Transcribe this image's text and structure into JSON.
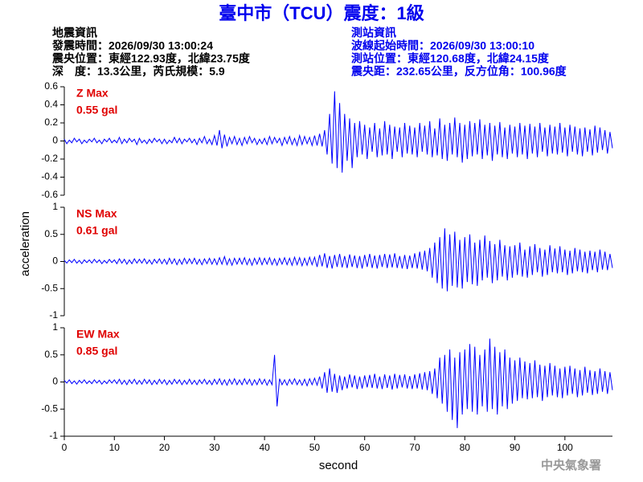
{
  "title": "臺中市（TCU）震度：1級",
  "header": {
    "left": [
      "地震資訊",
      "發震時間：2026/09/30 13:00:24",
      "震央位置：東經122.93度，北緯23.75度",
      "深　度：13.3公里，芮氏規模：5.9"
    ],
    "right": [
      "測站資訊",
      "波線起始時間：2026/09/30 13:00:10",
      "測站位置：東經120.68度，北緯24.15度",
      "震央距：232.65公里，反方位角：100.96度"
    ]
  },
  "footer": "中央氣象署",
  "chart_data": [
    {
      "type": "line",
      "label": "Z Max",
      "max_label": "0.55 gal",
      "color": "#0000ff",
      "xlim": [
        0,
        109.5
      ],
      "ylim": [
        -0.6,
        0.6
      ],
      "yticks": [
        0.6,
        0.4,
        0.2,
        0,
        -0.2,
        -0.4,
        -0.6
      ],
      "x": [
        0,
        0.5,
        1,
        1.5,
        2,
        2.5,
        3,
        3.5,
        4,
        4.5,
        5,
        5.5,
        6,
        6.5,
        7,
        7.5,
        8,
        8.5,
        9,
        9.5,
        10,
        10.5,
        11,
        11.5,
        12,
        12.5,
        13,
        13.5,
        14,
        14.5,
        15,
        15.5,
        16,
        16.5,
        17,
        17.5,
        18,
        18.5,
        19,
        19.5,
        20,
        20.5,
        21,
        21.5,
        22,
        22.5,
        23,
        23.5,
        24,
        24.5,
        25,
        25.5,
        26,
        26.5,
        27,
        27.5,
        28,
        28.5,
        29,
        29.5,
        30,
        30.5,
        31,
        31.5,
        32,
        32.5,
        33,
        33.5,
        34,
        34.5,
        35,
        35.5,
        36,
        36.5,
        37,
        37.5,
        38,
        38.5,
        39,
        39.5,
        40,
        40.5,
        41,
        41.5,
        42,
        42.5,
        43,
        43.5,
        44,
        44.5,
        45,
        45.5,
        46,
        46.5,
        47,
        47.5,
        48,
        48.5,
        49,
        49.5,
        50,
        50.5,
        51,
        51.5,
        52,
        52.5,
        53,
        53.5,
        54,
        54.5,
        55,
        55.5,
        56,
        56.5,
        57,
        57.5,
        58,
        58.5,
        59,
        59.5,
        60,
        60.5,
        61,
        61.5,
        62,
        62.5,
        63,
        63.5,
        64,
        64.5,
        65,
        65.5,
        66,
        66.5,
        67,
        67.5,
        68,
        68.5,
        69,
        69.5,
        70,
        70.5,
        71,
        71.5,
        72,
        72.5,
        73,
        73.5,
        74,
        74.5,
        75,
        75.5,
        76,
        76.5,
        77,
        77.5,
        78,
        78.5,
        79,
        79.5,
        80,
        80.5,
        81,
        81.5,
        82,
        82.5,
        83,
        83.5,
        84,
        84.5,
        85,
        85.5,
        86,
        86.5,
        87,
        87.5,
        88,
        88.5,
        89,
        89.5,
        90,
        90.5,
        91,
        91.5,
        92,
        92.5,
        93,
        93.5,
        94,
        94.5,
        95,
        95.5,
        96,
        96.5,
        97,
        97.5,
        98,
        98.5,
        99,
        99.5,
        100,
        100.5,
        101,
        101.5,
        102,
        102.5,
        103,
        103.5,
        104,
        104.5,
        105,
        105.5,
        106,
        106.5,
        107,
        107.5,
        108,
        108.5,
        109,
        109.5
      ],
      "values": [
        0.02,
        -0.03,
        0.01,
        -0.02,
        0.03,
        -0.01,
        0.02,
        -0.03,
        0.01,
        -0.02,
        0.02,
        -0.01,
        0.03,
        -0.02,
        0.01,
        -0.03,
        0.02,
        -0.01,
        0.03,
        -0.02,
        0.01,
        -0.02,
        0.04,
        -0.03,
        0.02,
        -0.02,
        0.03,
        -0.01,
        0.02,
        -0.04,
        0.03,
        -0.02,
        0.01,
        -0.03,
        0.02,
        -0.02,
        0.03,
        -0.01,
        0.02,
        -0.03,
        0.02,
        -0.03,
        0.01,
        -0.02,
        0.04,
        -0.02,
        0.03,
        -0.03,
        0.02,
        -0.01,
        0.03,
        -0.02,
        0.02,
        -0.04,
        0.03,
        -0.02,
        0.05,
        -0.03,
        0.02,
        -0.04,
        0.06,
        -0.05,
        0.12,
        -0.08,
        0.07,
        -0.06,
        0.04,
        -0.03,
        0.05,
        -0.04,
        0.03,
        -0.05,
        0.04,
        -0.03,
        0.05,
        -0.02,
        0.03,
        -0.04,
        0.02,
        -0.03,
        0.03,
        -0.04,
        0.05,
        -0.03,
        0.04,
        -0.02,
        0.03,
        -0.05,
        0.04,
        -0.03,
        0.05,
        -0.04,
        0.03,
        -0.05,
        0.06,
        -0.04,
        0.05,
        -0.03,
        0.04,
        -0.05,
        0.06,
        -0.05,
        0.08,
        -0.06,
        0.12,
        -0.15,
        0.3,
        -0.25,
        0.55,
        -0.3,
        0.42,
        -0.35,
        0.3,
        -0.22,
        0.25,
        -0.3,
        0.2,
        -0.18,
        0.22,
        -0.15,
        0.18,
        -0.2,
        0.15,
        -0.12,
        0.2,
        -0.18,
        0.14,
        -0.16,
        0.22,
        -0.15,
        0.18,
        -0.2,
        0.16,
        -0.12,
        0.15,
        -0.18,
        0.2,
        -0.14,
        0.17,
        -0.15,
        0.15,
        -0.18,
        0.2,
        -0.12,
        0.17,
        -0.15,
        0.22,
        -0.18,
        0.14,
        -0.16,
        0.25,
        -0.2,
        0.18,
        -0.22,
        0.2,
        -0.15,
        0.26,
        -0.18,
        0.2,
        -0.24,
        0.18,
        -0.2,
        0.22,
        -0.17,
        0.2,
        -0.15,
        0.24,
        -0.2,
        0.18,
        -0.16,
        0.2,
        -0.22,
        0.17,
        -0.15,
        0.21,
        -0.18,
        0.15,
        -0.2,
        0.18,
        -0.14,
        0.16,
        -0.18,
        0.2,
        -0.15,
        0.17,
        -0.2,
        0.19,
        -0.14,
        0.16,
        -0.18,
        0.2,
        -0.12,
        0.15,
        -0.17,
        0.18,
        -0.14,
        0.16,
        -0.15,
        0.2,
        -0.13,
        0.15,
        -0.17,
        0.18,
        -0.12,
        0.16,
        -0.15,
        0.14,
        -0.17,
        0.15,
        -0.12,
        0.13,
        -0.16,
        0.17,
        -0.13,
        0.15,
        -0.1,
        0.12,
        -0.14,
        0.1,
        -0.08
      ]
    },
    {
      "type": "line",
      "label": "NS Max",
      "max_label": "0.61 gal",
      "color": "#0000ff",
      "ylabel": "acceleration",
      "xlim": [
        0,
        109.5
      ],
      "ylim": [
        -1,
        1
      ],
      "yticks": [
        1,
        0.5,
        0,
        -0.5,
        -1
      ],
      "x": [
        0,
        0.5,
        1,
        1.5,
        2,
        2.5,
        3,
        3.5,
        4,
        4.5,
        5,
        5.5,
        6,
        6.5,
        7,
        7.5,
        8,
        8.5,
        9,
        9.5,
        10,
        10.5,
        11,
        11.5,
        12,
        12.5,
        13,
        13.5,
        14,
        14.5,
        15,
        15.5,
        16,
        16.5,
        17,
        17.5,
        18,
        18.5,
        19,
        19.5,
        20,
        20.5,
        21,
        21.5,
        22,
        22.5,
        23,
        23.5,
        24,
        24.5,
        25,
        25.5,
        26,
        26.5,
        27,
        27.5,
        28,
        28.5,
        29,
        29.5,
        30,
        30.5,
        31,
        31.5,
        32,
        32.5,
        33,
        33.5,
        34,
        34.5,
        35,
        35.5,
        36,
        36.5,
        37,
        37.5,
        38,
        38.5,
        39,
        39.5,
        40,
        40.5,
        41,
        41.5,
        42,
        42.5,
        43,
        43.5,
        44,
        44.5,
        45,
        45.5,
        46,
        46.5,
        47,
        47.5,
        48,
        48.5,
        49,
        49.5,
        50,
        50.5,
        51,
        51.5,
        52,
        52.5,
        53,
        53.5,
        54,
        54.5,
        55,
        55.5,
        56,
        56.5,
        57,
        57.5,
        58,
        58.5,
        59,
        59.5,
        60,
        60.5,
        61,
        61.5,
        62,
        62.5,
        63,
        63.5,
        64,
        64.5,
        65,
        65.5,
        66,
        66.5,
        67,
        67.5,
        68,
        68.5,
        69,
        69.5,
        70,
        70.5,
        71,
        71.5,
        72,
        72.5,
        73,
        73.5,
        74,
        74.5,
        75,
        75.5,
        76,
        76.5,
        77,
        77.5,
        78,
        78.5,
        79,
        79.5,
        80,
        80.5,
        81,
        81.5,
        82,
        82.5,
        83,
        83.5,
        84,
        84.5,
        85,
        85.5,
        86,
        86.5,
        87,
        87.5,
        88,
        88.5,
        89,
        89.5,
        90,
        90.5,
        91,
        91.5,
        92,
        92.5,
        93,
        93.5,
        94,
        94.5,
        95,
        95.5,
        96,
        96.5,
        97,
        97.5,
        98,
        98.5,
        99,
        99.5,
        100,
        100.5,
        101,
        101.5,
        102,
        102.5,
        103,
        103.5,
        104,
        104.5,
        105,
        105.5,
        106,
        106.5,
        107,
        107.5,
        108,
        108.5,
        109,
        109.5
      ],
      "values": [
        0.02,
        -0.03,
        0.03,
        -0.02,
        0.04,
        -0.03,
        0.02,
        -0.04,
        0.03,
        -0.02,
        0.03,
        -0.03,
        0.04,
        -0.02,
        0.03,
        -0.04,
        0.02,
        -0.03,
        0.04,
        -0.02,
        0.03,
        -0.04,
        0.05,
        -0.03,
        0.04,
        -0.05,
        0.03,
        -0.04,
        0.05,
        -0.03,
        0.04,
        -0.03,
        0.05,
        -0.04,
        0.03,
        -0.05,
        0.04,
        -0.03,
        0.05,
        -0.04,
        0.04,
        -0.05,
        0.06,
        -0.04,
        0.05,
        -0.06,
        0.04,
        -0.05,
        0.06,
        -0.04,
        0.05,
        -0.04,
        0.06,
        -0.05,
        0.04,
        -0.06,
        0.05,
        -0.04,
        0.06,
        -0.05,
        0.05,
        -0.06,
        0.07,
        -0.05,
        0.09,
        -0.06,
        0.05,
        -0.07,
        0.06,
        -0.05,
        0.06,
        -0.05,
        0.07,
        -0.06,
        0.05,
        -0.07,
        0.06,
        -0.05,
        0.07,
        -0.06,
        0.06,
        -0.05,
        0.07,
        -0.06,
        0.05,
        -0.07,
        0.06,
        -0.05,
        0.07,
        -0.06,
        0.06,
        -0.07,
        0.08,
        -0.06,
        0.07,
        -0.08,
        0.06,
        -0.07,
        0.08,
        -0.06,
        0.08,
        -0.1,
        0.12,
        -0.09,
        0.15,
        -0.12,
        0.1,
        -0.13,
        0.12,
        -0.1,
        0.14,
        -0.11,
        0.1,
        -0.12,
        0.13,
        -0.1,
        0.11,
        -0.12,
        0.1,
        -0.13,
        0.12,
        -0.1,
        0.14,
        -0.12,
        0.11,
        -0.13,
        0.12,
        -0.1,
        0.14,
        -0.12,
        0.13,
        -0.11,
        0.15,
        -0.12,
        0.1,
        -0.13,
        0.12,
        -0.14,
        0.11,
        -0.12,
        0.15,
        -0.13,
        0.18,
        -0.15,
        0.2,
        -0.18,
        0.25,
        -0.3,
        0.35,
        -0.4,
        0.45,
        -0.5,
        0.61,
        -0.55,
        0.5,
        -0.45,
        0.55,
        -0.48,
        0.4,
        -0.5,
        0.45,
        -0.38,
        0.5,
        -0.42,
        0.35,
        -0.45,
        0.4,
        -0.35,
        0.48,
        -0.3,
        0.38,
        -0.4,
        0.32,
        -0.35,
        0.4,
        -0.28,
        0.3,
        -0.35,
        0.28,
        -0.3,
        0.3,
        -0.25,
        0.35,
        -0.28,
        0.22,
        -0.3,
        0.28,
        -0.25,
        0.32,
        -0.2,
        0.25,
        -0.28,
        0.22,
        -0.25,
        0.3,
        -0.2,
        0.24,
        -0.22,
        0.28,
        -0.2,
        0.22,
        -0.25,
        0.2,
        -0.22,
        0.25,
        -0.18,
        0.22,
        -0.2,
        0.18,
        -0.22,
        0.2,
        -0.16,
        0.18,
        -0.2,
        0.22,
        -0.15,
        0.18,
        -0.16,
        0.14,
        -0.12
      ]
    },
    {
      "type": "line",
      "label": "EW Max",
      "max_label": "0.85 gal",
      "color": "#0000ff",
      "xlabel": "second",
      "xlim": [
        0,
        109.5
      ],
      "xticks": [
        0,
        10,
        20,
        30,
        40,
        50,
        60,
        70,
        80,
        90,
        100
      ],
      "ylim": [
        -1,
        1
      ],
      "yticks": [
        1,
        0.5,
        0,
        -0.5,
        -1
      ],
      "x": [
        0,
        0.5,
        1,
        1.5,
        2,
        2.5,
        3,
        3.5,
        4,
        4.5,
        5,
        5.5,
        6,
        6.5,
        7,
        7.5,
        8,
        8.5,
        9,
        9.5,
        10,
        10.5,
        11,
        11.5,
        12,
        12.5,
        13,
        13.5,
        14,
        14.5,
        15,
        15.5,
        16,
        16.5,
        17,
        17.5,
        18,
        18.5,
        19,
        19.5,
        20,
        20.5,
        21,
        21.5,
        22,
        22.5,
        23,
        23.5,
        24,
        24.5,
        25,
        25.5,
        26,
        26.5,
        27,
        27.5,
        28,
        28.5,
        29,
        29.5,
        30,
        30.5,
        31,
        31.5,
        32,
        32.5,
        33,
        33.5,
        34,
        34.5,
        35,
        35.5,
        36,
        36.5,
        37,
        37.5,
        38,
        38.5,
        39,
        39.5,
        40,
        40.5,
        41,
        41.5,
        42,
        42.5,
        43,
        43.5,
        44,
        44.5,
        45,
        45.5,
        46,
        46.5,
        47,
        47.5,
        48,
        48.5,
        49,
        49.5,
        50,
        50.5,
        51,
        51.5,
        52,
        52.5,
        53,
        53.5,
        54,
        54.5,
        55,
        55.5,
        56,
        56.5,
        57,
        57.5,
        58,
        58.5,
        59,
        59.5,
        60,
        60.5,
        61,
        61.5,
        62,
        62.5,
        63,
        63.5,
        64,
        64.5,
        65,
        65.5,
        66,
        66.5,
        67,
        67.5,
        68,
        68.5,
        69,
        69.5,
        70,
        70.5,
        71,
        71.5,
        72,
        72.5,
        73,
        73.5,
        74,
        74.5,
        75,
        75.5,
        76,
        76.5,
        77,
        77.5,
        78,
        78.5,
        79,
        79.5,
        80,
        80.5,
        81,
        81.5,
        82,
        82.5,
        83,
        83.5,
        84,
        84.5,
        85,
        85.5,
        86,
        86.5,
        87,
        87.5,
        88,
        88.5,
        89,
        89.5,
        90,
        90.5,
        91,
        91.5,
        92,
        92.5,
        93,
        93.5,
        94,
        94.5,
        95,
        95.5,
        96,
        96.5,
        97,
        97.5,
        98,
        98.5,
        99,
        99.5,
        100,
        100.5,
        101,
        101.5,
        102,
        102.5,
        103,
        103.5,
        104,
        104.5,
        105,
        105.5,
        106,
        106.5,
        107,
        107.5,
        108,
        108.5,
        109,
        109.5
      ],
      "values": [
        0.03,
        -0.02,
        0.04,
        -0.03,
        0.02,
        -0.04,
        0.03,
        -0.02,
        0.04,
        -0.03,
        0.02,
        -0.03,
        0.04,
        -0.02,
        0.03,
        -0.04,
        0.02,
        -0.03,
        0.04,
        -0.02,
        0.04,
        -0.03,
        0.05,
        -0.04,
        0.03,
        -0.05,
        0.04,
        -0.03,
        0.05,
        -0.04,
        0.03,
        -0.04,
        0.05,
        -0.03,
        0.04,
        -0.05,
        0.03,
        -0.04,
        0.05,
        -0.03,
        0.04,
        -0.05,
        0.03,
        -0.04,
        0.05,
        -0.03,
        0.04,
        -0.05,
        0.03,
        -0.04,
        0.05,
        -0.04,
        0.03,
        -0.05,
        0.04,
        -0.03,
        0.05,
        -0.04,
        0.03,
        -0.05,
        0.05,
        -0.04,
        0.06,
        -0.05,
        0.04,
        -0.06,
        0.05,
        -0.04,
        0.06,
        -0.05,
        0.04,
        -0.05,
        0.06,
        -0.04,
        0.05,
        -0.06,
        0.04,
        -0.05,
        0.06,
        -0.04,
        0.05,
        -0.06,
        0.04,
        -0.05,
        0.5,
        -0.45,
        0.06,
        -0.05,
        0.04,
        -0.06,
        0.05,
        -0.04,
        0.06,
        -0.05,
        0.04,
        -0.06,
        0.05,
        -0.07,
        0.06,
        -0.05,
        0.07,
        -0.06,
        0.1,
        -0.12,
        0.18,
        -0.2,
        0.25,
        -0.18,
        0.15,
        -0.2,
        0.12,
        -0.15,
        0.1,
        -0.12,
        0.14,
        -0.1,
        0.12,
        -0.13,
        0.1,
        -0.12,
        0.12,
        -0.1,
        0.13,
        -0.11,
        0.15,
        -0.12,
        0.1,
        -0.13,
        0.14,
        -0.11,
        0.12,
        -0.14,
        0.15,
        -0.12,
        0.13,
        -0.1,
        0.14,
        -0.12,
        0.11,
        -0.13,
        0.14,
        -0.12,
        0.16,
        -0.14,
        0.18,
        -0.15,
        0.2,
        -0.22,
        0.25,
        -0.3,
        0.45,
        -0.4,
        0.5,
        -0.55,
        0.6,
        -0.7,
        0.45,
        -0.85,
        0.55,
        -0.6,
        0.6,
        -0.5,
        0.7,
        -0.55,
        0.65,
        -0.6,
        0.5,
        -0.45,
        0.6,
        -0.55,
        0.8,
        -0.5,
        0.65,
        -0.6,
        0.55,
        -0.45,
        0.6,
        -0.5,
        0.45,
        -0.4,
        0.4,
        -0.35,
        0.45,
        -0.3,
        0.38,
        -0.32,
        0.35,
        -0.3,
        0.4,
        -0.28,
        0.32,
        -0.35,
        0.3,
        -0.28,
        0.35,
        -0.25,
        0.3,
        -0.28,
        0.25,
        -0.3,
        0.28,
        -0.25,
        0.3,
        -0.22,
        0.25,
        -0.28,
        0.22,
        -0.25,
        0.28,
        -0.2,
        0.22,
        -0.24,
        0.2,
        -0.22,
        0.25,
        -0.18,
        0.2,
        -0.22,
        0.18,
        -0.15
      ]
    }
  ]
}
